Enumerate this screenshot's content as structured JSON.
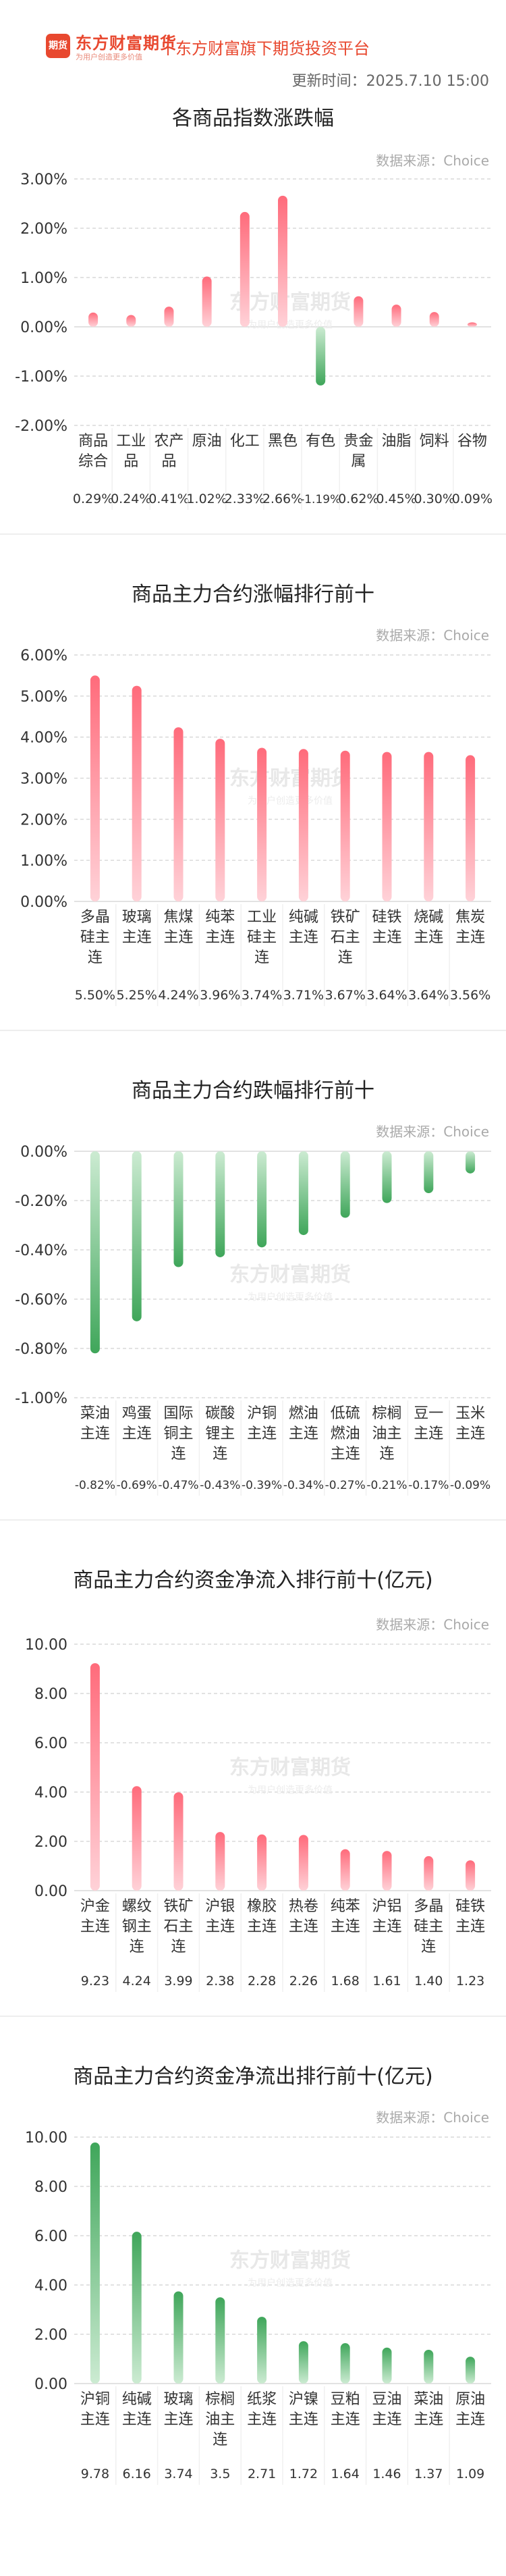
{
  "header": {
    "logo_text": "期货",
    "brand_name": "东方财富期货",
    "brand_slogan": "为用户创造更多价值",
    "platform": "东方财富旗下期货投资平台",
    "update_time": "更新时间：2025.7.10 15:00"
  },
  "watermark": {
    "name": "东方财富期货",
    "slogan": "为用户创造更多价值"
  },
  "colors": {
    "positive_top": "#ff6b7b",
    "positive_bottom": "#ffd2d8",
    "negative_top": "#ccebd2",
    "negative_bottom": "#3fa65a",
    "grid": "#d9d9d9",
    "text": "#333333"
  },
  "chart_data": [
    {
      "id": "index",
      "type": "bar",
      "title": "各商品指数涨跌幅",
      "source": "数据来源：Choice",
      "ylim": [
        -2,
        3
      ],
      "ytick_labels": [
        "3.00%",
        "2.00%",
        "1.00%",
        "0.00%",
        "-1.00%",
        "-2.00%"
      ],
      "yticks": [
        3,
        2,
        1,
        0,
        -1,
        -2
      ],
      "categories": [
        "商品综合",
        "工业品",
        "农产品",
        "原油",
        "化工",
        "黑色",
        "有色",
        "贵金属",
        "油脂",
        "饲料",
        "谷物"
      ],
      "category_lines": [
        [
          "商品",
          "综合"
        ],
        [
          "工业",
          "品"
        ],
        [
          "农产",
          "品"
        ],
        [
          "原油"
        ],
        [
          "化工"
        ],
        [
          "黑色"
        ],
        [
          "有色"
        ],
        [
          "贵金",
          "属"
        ],
        [
          "油脂"
        ],
        [
          "饲料"
        ],
        [
          "谷物"
        ]
      ],
      "values": [
        0.29,
        0.24,
        0.41,
        1.02,
        2.33,
        2.66,
        -1.19,
        0.62,
        0.45,
        0.3,
        0.09
      ],
      "value_labels": [
        "0.29%",
        "0.24%",
        "0.41%",
        "1.02%",
        "2.33%",
        "2.66%",
        "-1.19%",
        "0.62%",
        "0.45%",
        "0.30%",
        "0.09%"
      ],
      "grid": true
    },
    {
      "id": "gain",
      "type": "bar",
      "title": "商品主力合约涨幅排行前十",
      "source": "数据来源：Choice",
      "ylim": [
        0,
        6
      ],
      "ytick_labels": [
        "6.00%",
        "5.00%",
        "4.00%",
        "3.00%",
        "2.00%",
        "1.00%",
        "0.00%"
      ],
      "yticks": [
        6,
        5,
        4,
        3,
        2,
        1,
        0
      ],
      "categories": [
        "多晶硅主连",
        "玻璃主连",
        "焦煤主连",
        "纯苯主连",
        "工业硅主连",
        "纯碱主连",
        "铁矿石主连",
        "硅铁主连",
        "烧碱主连",
        "焦炭主连"
      ],
      "category_lines": [
        [
          "多晶",
          "硅主",
          "连"
        ],
        [
          "玻璃",
          "主连"
        ],
        [
          "焦煤",
          "主连"
        ],
        [
          "纯苯",
          "主连"
        ],
        [
          "工业",
          "硅主",
          "连"
        ],
        [
          "纯碱",
          "主连"
        ],
        [
          "铁矿",
          "石主",
          "连"
        ],
        [
          "硅铁",
          "主连"
        ],
        [
          "烧碱",
          "主连"
        ],
        [
          "焦炭",
          "主连"
        ]
      ],
      "values": [
        5.5,
        5.25,
        4.24,
        3.96,
        3.74,
        3.71,
        3.67,
        3.64,
        3.64,
        3.56
      ],
      "value_labels": [
        "5.50%",
        "5.25%",
        "4.24%",
        "3.96%",
        "3.74%",
        "3.71%",
        "3.67%",
        "3.64%",
        "3.64%",
        "3.56%"
      ],
      "grid": true
    },
    {
      "id": "loss",
      "type": "bar",
      "title": "商品主力合约跌幅排行前十",
      "source": "数据来源：Choice",
      "ylim": [
        -1,
        0
      ],
      "ytick_labels": [
        "0.00%",
        "-0.20%",
        "-0.40%",
        "-0.60%",
        "-0.80%",
        "-1.00%"
      ],
      "yticks": [
        0,
        -0.2,
        -0.4,
        -0.6,
        -0.8,
        -1
      ],
      "categories": [
        "菜油主连",
        "鸡蛋主连",
        "国际铜主连",
        "碳酸锂主连",
        "沪铜主连",
        "燃油主连",
        "低硫燃油主连",
        "棕榈油主连",
        "豆一主连",
        "玉米主连"
      ],
      "category_lines": [
        [
          "菜油",
          "主连"
        ],
        [
          "鸡蛋",
          "主连"
        ],
        [
          "国际",
          "铜主",
          "连"
        ],
        [
          "碳酸",
          "锂主",
          "连"
        ],
        [
          "沪铜",
          "主连"
        ],
        [
          "燃油",
          "主连"
        ],
        [
          "低硫",
          "燃油",
          "主连"
        ],
        [
          "棕榈",
          "油主",
          "连"
        ],
        [
          "豆一",
          "主连"
        ],
        [
          "玉米",
          "主连"
        ]
      ],
      "values": [
        -0.82,
        -0.69,
        -0.47,
        -0.43,
        -0.39,
        -0.34,
        -0.27,
        -0.21,
        -0.17,
        -0.09
      ],
      "value_labels": [
        "-0.82%",
        "-0.69%",
        "-0.47%",
        "-0.43%",
        "-0.39%",
        "-0.34%",
        "-0.27%",
        "-0.21%",
        "-0.17%",
        "-0.09%"
      ],
      "grid": true
    },
    {
      "id": "inflow",
      "type": "bar",
      "title": "商品主力合约资金净流入排行前十(亿元)",
      "source": "数据来源：Choice",
      "ylim": [
        0,
        10
      ],
      "ytick_labels": [
        "10.00",
        "8.00",
        "6.00",
        "4.00",
        "2.00",
        "0.00"
      ],
      "yticks": [
        10,
        8,
        6,
        4,
        2,
        0
      ],
      "categories": [
        "沪金主连",
        "螺纹钢主连",
        "铁矿石主连",
        "沪银主连",
        "橡胶主连",
        "热卷主连",
        "纯苯主连",
        "沪铝主连",
        "多晶硅主连",
        "硅铁主连"
      ],
      "category_lines": [
        [
          "沪金",
          "主连"
        ],
        [
          "螺纹",
          "钢主",
          "连"
        ],
        [
          "铁矿",
          "石主",
          "连"
        ],
        [
          "沪银",
          "主连"
        ],
        [
          "橡胶",
          "主连"
        ],
        [
          "热卷",
          "主连"
        ],
        [
          "纯苯",
          "主连"
        ],
        [
          "沪铝",
          "主连"
        ],
        [
          "多晶",
          "硅主",
          "连"
        ],
        [
          "硅铁",
          "主连"
        ]
      ],
      "values": [
        9.23,
        4.24,
        3.99,
        2.38,
        2.28,
        2.26,
        1.68,
        1.61,
        1.4,
        1.23
      ],
      "value_labels": [
        "9.23",
        "4.24",
        "3.99",
        "2.38",
        "2.28",
        "2.26",
        "1.68",
        "1.61",
        "1.40",
        "1.23"
      ],
      "grid": true
    },
    {
      "id": "outflow",
      "type": "bar",
      "title": "商品主力合约资金净流出排行前十(亿元)",
      "source": "数据来源：Choice",
      "ylim": [
        0,
        10
      ],
      "ytick_labels": [
        "10.00",
        "8.00",
        "6.00",
        "4.00",
        "2.00",
        "0.00"
      ],
      "yticks": [
        10,
        8,
        6,
        4,
        2,
        0
      ],
      "categories": [
        "沪铜主连",
        "纯碱主连",
        "玻璃主连",
        "棕榈油主连",
        "纸浆主连",
        "沪镍主连",
        "豆粕主连",
        "豆油主连",
        "菜油主连",
        "原油主连"
      ],
      "category_lines": [
        [
          "沪铜",
          "主连"
        ],
        [
          "纯碱",
          "主连"
        ],
        [
          "玻璃",
          "主连"
        ],
        [
          "棕榈",
          "油主",
          "连"
        ],
        [
          "纸浆",
          "主连"
        ],
        [
          "沪镍",
          "主连"
        ],
        [
          "豆粕",
          "主连"
        ],
        [
          "豆油",
          "主连"
        ],
        [
          "菜油",
          "主连"
        ],
        [
          "原油",
          "主连"
        ]
      ],
      "values": [
        9.78,
        6.16,
        3.74,
        3.5,
        2.71,
        1.72,
        1.64,
        1.46,
        1.37,
        1.09
      ],
      "value_labels": [
        "9.78",
        "6.16",
        "3.74",
        "3.5",
        "2.71",
        "1.72",
        "1.64",
        "1.46",
        "1.37",
        "1.09"
      ],
      "grid": true
    }
  ]
}
